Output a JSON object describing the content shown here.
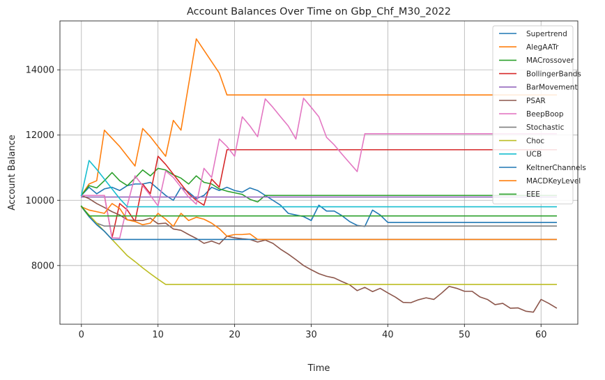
{
  "chart_data": {
    "type": "line",
    "title": "Account Balances Over Time on Gbp_Chf_M30_2022",
    "xlabel": "Time",
    "ylabel": "Account Balance",
    "xlim": [
      -2.8,
      64.8
    ],
    "ylim": [
      6200,
      15500
    ],
    "xticks": [
      0,
      10,
      20,
      30,
      40,
      50,
      60
    ],
    "yticks": [
      8000,
      10000,
      12000,
      14000
    ],
    "grid": true,
    "legend_position": "top-right",
    "series": [
      {
        "name": "Supertrend",
        "color": "#1f77b4",
        "points": [
          [
            0,
            10150
          ],
          [
            1,
            10400
          ],
          [
            2,
            10200
          ],
          [
            3,
            10350
          ],
          [
            4,
            10400
          ],
          [
            5,
            10300
          ],
          [
            6,
            10450
          ],
          [
            7,
            10500
          ],
          [
            8,
            10500
          ],
          [
            9,
            10550
          ],
          [
            10,
            10350
          ],
          [
            11,
            10150
          ],
          [
            12,
            10000
          ],
          [
            13,
            10400
          ],
          [
            14,
            10250
          ],
          [
            15,
            10050
          ],
          [
            16,
            10150
          ],
          [
            17,
            10400
          ],
          [
            18,
            10300
          ],
          [
            19,
            10400
          ],
          [
            20,
            10300
          ],
          [
            21,
            10250
          ],
          [
            22,
            10380
          ],
          [
            23,
            10300
          ],
          [
            24,
            10150
          ],
          [
            25,
            10000
          ],
          [
            26,
            9850
          ],
          [
            27,
            9600
          ],
          [
            28,
            9550
          ],
          [
            29,
            9500
          ],
          [
            30,
            9380
          ],
          [
            31,
            9850
          ],
          [
            32,
            9670
          ],
          [
            33,
            9670
          ],
          [
            34,
            9530
          ],
          [
            35,
            9350
          ],
          [
            36,
            9230
          ],
          [
            37,
            9200
          ],
          [
            38,
            9700
          ],
          [
            39,
            9550
          ],
          [
            40,
            9320
          ],
          [
            62,
            9320
          ]
        ]
      },
      {
        "name": "AlegAATr",
        "color": "#ff7f0e",
        "points": [
          [
            0,
            10150
          ],
          [
            1,
            10500
          ],
          [
            2,
            10600
          ],
          [
            3,
            12150
          ],
          [
            4,
            11900
          ],
          [
            5,
            11650
          ],
          [
            6,
            11350
          ],
          [
            7,
            11050
          ],
          [
            8,
            12200
          ],
          [
            9,
            11950
          ],
          [
            10,
            11650
          ],
          [
            11,
            11350
          ],
          [
            12,
            12450
          ],
          [
            13,
            12150
          ],
          [
            14,
            13550
          ],
          [
            15,
            14950
          ],
          [
            16,
            14600
          ],
          [
            17,
            14250
          ],
          [
            18,
            13900
          ],
          [
            19,
            13230
          ],
          [
            62,
            13230
          ]
        ]
      },
      {
        "name": "MACrossover",
        "color": "#2ca02c",
        "points": [
          [
            0,
            10150
          ],
          [
            1,
            10450
          ],
          [
            2,
            10380
          ],
          [
            3,
            10600
          ],
          [
            4,
            10850
          ],
          [
            5,
            10600
          ],
          [
            6,
            10450
          ],
          [
            7,
            10680
          ],
          [
            8,
            10930
          ],
          [
            9,
            10750
          ],
          [
            10,
            10980
          ],
          [
            11,
            10930
          ],
          [
            12,
            10780
          ],
          [
            13,
            10680
          ],
          [
            14,
            10500
          ],
          [
            15,
            10750
          ],
          [
            16,
            10550
          ],
          [
            17,
            10500
          ],
          [
            18,
            10350
          ],
          [
            19,
            10280
          ],
          [
            20,
            10230
          ],
          [
            21,
            10180
          ],
          [
            22,
            10030
          ],
          [
            23,
            9950
          ],
          [
            24,
            10150
          ],
          [
            62,
            10150
          ]
        ]
      },
      {
        "name": "BollingerBands",
        "color": "#d62728",
        "points": [
          [
            0,
            10150
          ],
          [
            1,
            10150
          ],
          [
            2,
            10150
          ],
          [
            3,
            10150
          ],
          [
            4,
            8850
          ],
          [
            5,
            9900
          ],
          [
            6,
            9700
          ],
          [
            7,
            9350
          ],
          [
            8,
            10500
          ],
          [
            9,
            10200
          ],
          [
            10,
            11350
          ],
          [
            11,
            11100
          ],
          [
            12,
            10800
          ],
          [
            13,
            10500
          ],
          [
            14,
            10200
          ],
          [
            15,
            10000
          ],
          [
            16,
            9850
          ],
          [
            17,
            10650
          ],
          [
            18,
            10400
          ],
          [
            19,
            11550
          ],
          [
            62,
            11550
          ]
        ]
      },
      {
        "name": "BarMovement",
        "color": "#9467bd",
        "points": [
          [
            0,
            10100
          ],
          [
            62,
            10100
          ]
        ]
      },
      {
        "name": "PSAR",
        "color": "#8c564b",
        "points": [
          [
            0,
            10150
          ],
          [
            1,
            10050
          ],
          [
            2,
            9900
          ],
          [
            3,
            9780
          ],
          [
            4,
            9650
          ],
          [
            5,
            9550
          ],
          [
            6,
            9400
          ],
          [
            7,
            9380
          ],
          [
            8,
            9380
          ],
          [
            9,
            9450
          ],
          [
            10,
            9280
          ],
          [
            11,
            9300
          ],
          [
            12,
            9120
          ],
          [
            13,
            9080
          ],
          [
            14,
            8950
          ],
          [
            15,
            8830
          ],
          [
            16,
            8680
          ],
          [
            17,
            8750
          ],
          [
            18,
            8660
          ],
          [
            19,
            8900
          ],
          [
            20,
            8850
          ],
          [
            21,
            8820
          ],
          [
            22,
            8800
          ],
          [
            23,
            8720
          ],
          [
            24,
            8780
          ],
          [
            25,
            8680
          ],
          [
            26,
            8500
          ],
          [
            27,
            8350
          ],
          [
            28,
            8180
          ],
          [
            29,
            8000
          ],
          [
            30,
            7870
          ],
          [
            31,
            7750
          ],
          [
            32,
            7670
          ],
          [
            33,
            7620
          ],
          [
            34,
            7510
          ],
          [
            35,
            7410
          ],
          [
            36,
            7230
          ],
          [
            37,
            7330
          ],
          [
            38,
            7200
          ],
          [
            39,
            7300
          ],
          [
            40,
            7160
          ],
          [
            41,
            7030
          ],
          [
            42,
            6870
          ],
          [
            43,
            6860
          ],
          [
            44,
            6950
          ],
          [
            45,
            7010
          ],
          [
            46,
            6960
          ],
          [
            47,
            7150
          ],
          [
            48,
            7360
          ],
          [
            49,
            7300
          ],
          [
            50,
            7210
          ],
          [
            51,
            7210
          ],
          [
            52,
            7040
          ],
          [
            53,
            6960
          ],
          [
            54,
            6800
          ],
          [
            55,
            6840
          ],
          [
            56,
            6690
          ],
          [
            57,
            6700
          ],
          [
            58,
            6600
          ],
          [
            59,
            6570
          ],
          [
            60,
            6960
          ],
          [
            61,
            6840
          ],
          [
            62,
            6700
          ]
        ]
      },
      {
        "name": "BeepBoop",
        "color": "#e377c2",
        "points": [
          [
            0,
            10150
          ],
          [
            1,
            10150
          ],
          [
            2,
            10150
          ],
          [
            3,
            10150
          ],
          [
            4,
            8850
          ],
          [
            5,
            8840
          ],
          [
            6,
            9850
          ],
          [
            7,
            10750
          ],
          [
            8,
            10450
          ],
          [
            9,
            10150
          ],
          [
            10,
            9830
          ],
          [
            11,
            10900
          ],
          [
            12,
            10700
          ],
          [
            13,
            10400
          ],
          [
            14,
            10100
          ],
          [
            15,
            9880
          ],
          [
            16,
            10980
          ],
          [
            17,
            10700
          ],
          [
            18,
            11880
          ],
          [
            19,
            11650
          ],
          [
            20,
            11350
          ],
          [
            21,
            12560
          ],
          [
            22,
            12280
          ],
          [
            23,
            11950
          ],
          [
            24,
            13110
          ],
          [
            25,
            12850
          ],
          [
            26,
            12560
          ],
          [
            27,
            12280
          ],
          [
            28,
            11880
          ],
          [
            29,
            13130
          ],
          [
            30,
            12850
          ],
          [
            31,
            12560
          ],
          [
            32,
            11930
          ],
          [
            33,
            11700
          ],
          [
            34,
            11420
          ],
          [
            35,
            11150
          ],
          [
            36,
            10880
          ],
          [
            37,
            12040
          ],
          [
            62,
            12040
          ]
        ]
      },
      {
        "name": "Stochastic",
        "color": "#7f7f7f",
        "points": [
          [
            0,
            9800
          ],
          [
            1,
            9500
          ],
          [
            2,
            9300
          ],
          [
            3,
            9210
          ],
          [
            62,
            9210
          ]
        ]
      },
      {
        "name": "Choc",
        "color": "#bcbd22",
        "points": [
          [
            0,
            9800
          ],
          [
            1,
            9550
          ],
          [
            2,
            9300
          ],
          [
            3,
            9050
          ],
          [
            4,
            8800
          ],
          [
            5,
            8550
          ],
          [
            6,
            8300
          ],
          [
            7,
            8120
          ],
          [
            8,
            7930
          ],
          [
            9,
            7750
          ],
          [
            10,
            7580
          ],
          [
            11,
            7420
          ],
          [
            62,
            7420
          ]
        ]
      },
      {
        "name": "UCB",
        "color": "#17becf",
        "points": [
          [
            0,
            10150
          ],
          [
            1,
            11220
          ],
          [
            2,
            10950
          ],
          [
            3,
            10650
          ],
          [
            4,
            10350
          ],
          [
            5,
            10050
          ],
          [
            6,
            9800
          ],
          [
            62,
            9800
          ]
        ]
      },
      {
        "name": "KeltnerChannels",
        "color": "#1f77b4",
        "points": [
          [
            0,
            9820
          ],
          [
            1,
            9500
          ],
          [
            2,
            9250
          ],
          [
            3,
            9050
          ],
          [
            4,
            8800
          ],
          [
            62,
            8800
          ]
        ]
      },
      {
        "name": "MACDKeyLevel",
        "color": "#ff7f0e",
        "points": [
          [
            0,
            9800
          ],
          [
            1,
            9700
          ],
          [
            2,
            9650
          ],
          [
            3,
            9600
          ],
          [
            4,
            9900
          ],
          [
            5,
            9750
          ],
          [
            6,
            9400
          ],
          [
            7,
            9350
          ],
          [
            8,
            9250
          ],
          [
            9,
            9300
          ],
          [
            10,
            9600
          ],
          [
            11,
            9420
          ],
          [
            12,
            9200
          ],
          [
            13,
            9600
          ],
          [
            14,
            9380
          ],
          [
            15,
            9480
          ],
          [
            16,
            9420
          ],
          [
            17,
            9300
          ],
          [
            18,
            9130
          ],
          [
            19,
            8900
          ],
          [
            20,
            8950
          ],
          [
            21,
            8950
          ],
          [
            22,
            8970
          ],
          [
            23,
            8800
          ],
          [
            62,
            8800
          ]
        ]
      },
      {
        "name": "EEE",
        "color": "#2ca02c",
        "points": [
          [
            0,
            9820
          ],
          [
            1,
            9520
          ],
          [
            62,
            9520
          ]
        ]
      }
    ]
  }
}
